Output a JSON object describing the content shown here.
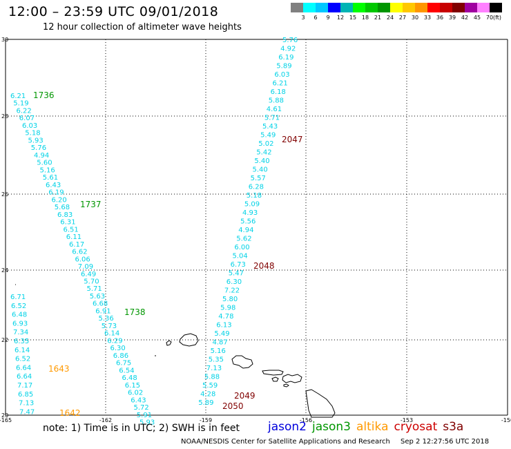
{
  "title": "12:00 – 23:59 UTC 09/01/2018",
  "subtitle": "12 hour collection of altimeter wave heights",
  "note": "note:  1) Time is in UTC;  2) SWH is in feet",
  "credit": "NOAA/NESDIS Center for Satellite Applications and Research",
  "stamp": "Sep  2 12:27:56 UTC 2018",
  "colorbar": {
    "labels": [
      "3",
      "6",
      "9",
      "12",
      "15",
      "18",
      "21",
      "24",
      "27",
      "30",
      "33",
      "36",
      "39",
      "42",
      "45",
      "70"
    ],
    "unit": "(ft)",
    "colors": [
      "#808080",
      "#00ffff",
      "#00c8ff",
      "#0000ff",
      "#00b4b4",
      "#00ff00",
      "#00c800",
      "#009600",
      "#ffff00",
      "#ffc800",
      "#ff9600",
      "#ff0000",
      "#c80000",
      "#800000",
      "#a000a0",
      "#ff80ff",
      "#000000"
    ]
  },
  "satellites": [
    {
      "name": "jason2",
      "color": "#0000dd"
    },
    {
      "name": "jason3",
      "color": "#009600"
    },
    {
      "name": "altika",
      "color": "#ff9900"
    },
    {
      "name": "cryosat",
      "color": "#cc0000"
    },
    {
      "name": "s3a",
      "color": "#800000"
    }
  ],
  "axes": {
    "lon_ticks": [
      "-165",
      "-162",
      "-159",
      "-156",
      "-153",
      "-150"
    ],
    "lat_ticks": [
      "30",
      "28",
      "26",
      "24",
      "22",
      "20"
    ]
  },
  "track_label_color": "#00d2e6",
  "tracks": [
    {
      "id": "track-a",
      "values": [
        "6.21",
        "5.19",
        "6.22",
        "6.07",
        "6.03",
        "5.18",
        "5.93",
        "5.76",
        "4.94",
        "5.60",
        "5.16",
        "5.61",
        "6.43",
        "6.19",
        "6.20",
        "5.68",
        "6.83",
        "6.31",
        "6.51",
        "6.11",
        "6.17",
        "6.62",
        "6.06",
        "7.09",
        "6.49",
        "5.70",
        "5.71",
        "5.63",
        "6.68",
        "6.91",
        "5.36",
        "5.73",
        "6.14",
        "6.29",
        "6.30",
        "6.86",
        "6.75",
        "6.54",
        "6.48",
        "6.15",
        "6.02",
        "6.43",
        "5.72",
        "5.91",
        "5.93"
      ],
      "times": [
        {
          "label": "1736",
          "color": "#009600"
        },
        {
          "label": "1737",
          "color": "#009600"
        },
        {
          "label": "1738",
          "color": "#009600"
        }
      ]
    },
    {
      "id": "track-b",
      "values": [
        "6.71",
        "6.52",
        "6.48",
        "6.93",
        "7.34",
        "6.35",
        "6.14",
        "6.52",
        "6.64",
        "6.64",
        "7.17",
        "6.85",
        "7.13",
        "7.47"
      ],
      "times": [
        {
          "label": "1643",
          "color": "#ff9900"
        },
        {
          "label": "1642",
          "color": "#ff9900"
        }
      ]
    },
    {
      "id": "track-c",
      "values": [
        "5.76",
        "4.92",
        "6.19",
        "5.89",
        "6.03",
        "6.21",
        "6.18",
        "5.88",
        "4.61",
        "5.71",
        "5.43",
        "5.49",
        "5.02",
        "5.42",
        "5.40",
        "5.40",
        "5.57",
        "6.28",
        "5.18",
        "5.09",
        "4.93",
        "5.56",
        "4.94",
        "5.62",
        "6.00",
        "5.04",
        "6.73",
        "5.47",
        "6.30",
        "7.22",
        "5.80",
        "5.98",
        "4.78",
        "6.13",
        "5.49",
        "4.87",
        "5.16",
        "5.35",
        "7.13",
        "5.88",
        "5.59",
        "4.28",
        "5.89"
      ],
      "times": [
        {
          "label": "2047",
          "color": "#800000"
        },
        {
          "label": "2048",
          "color": "#800000"
        },
        {
          "label": "2049",
          "color": "#800000"
        },
        {
          "label": "2050",
          "color": "#800000"
        }
      ]
    }
  ]
}
